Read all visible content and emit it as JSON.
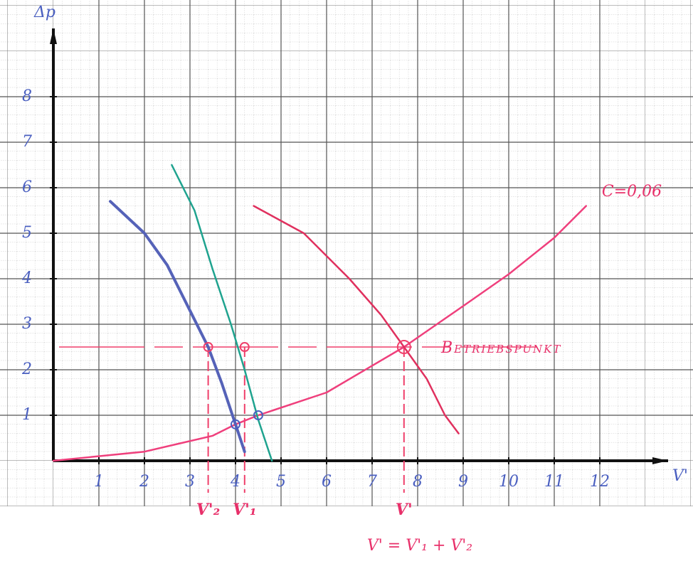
{
  "chart_data": {
    "type": "line",
    "x_label": "V'",
    "y_label": "Δp",
    "xlim": [
      0,
      13.5
    ],
    "ylim": [
      0,
      9.5
    ],
    "xticks": [
      1,
      2,
      3,
      4,
      5,
      6,
      7,
      8,
      9,
      10,
      11,
      12
    ],
    "yticks": [
      1,
      2,
      3,
      4,
      5,
      6,
      7,
      8
    ],
    "grid": true,
    "series": [
      {
        "name": "C=0,06",
        "color": "#ef3f7c",
        "x": [
          0,
          2,
          3.5,
          4,
          4.5,
          6,
          7.7,
          9,
          10,
          11,
          11.7
        ],
        "values": [
          0,
          0.2,
          0.55,
          0.8,
          1.0,
          1.5,
          2.5,
          3.4,
          4.1,
          4.9,
          5.6
        ]
      },
      {
        "color": "#5562b8",
        "x": [
          1.25,
          2,
          2.5,
          3,
          3.4,
          3.7,
          4,
          4.2
        ],
        "values": [
          5.7,
          5.0,
          4.3,
          3.3,
          2.5,
          1.7,
          0.8,
          0.2
        ]
      },
      {
        "color": "#1fa38f",
        "x": [
          2.6,
          3.1,
          3.5,
          3.9,
          4.2,
          4.5,
          4.8
        ],
        "values": [
          6.5,
          5.5,
          4.2,
          3.0,
          2.0,
          0.9,
          0
        ]
      },
      {
        "color": "#e0305e",
        "x": [
          4.4,
          5.5,
          6.5,
          7.2,
          7.7,
          8.2,
          8.6,
          8.9
        ],
        "values": [
          5.6,
          5.0,
          4.0,
          3.2,
          2.5,
          1.8,
          1.0,
          0.6
        ]
      }
    ],
    "hline": {
      "value": 2.5,
      "label": "Betriebspunkt",
      "color": "#ef3f6a"
    },
    "vlines": [
      {
        "value": 3.4,
        "label": "V'₂"
      },
      {
        "value": 4.2,
        "label": "V'₁"
      },
      {
        "value": 7.7,
        "label": "V'"
      }
    ],
    "points": {
      "x": [
        4.0,
        4.5,
        7.7,
        3.4,
        4.2
      ],
      "y": [
        0.8,
        1.0,
        2.5,
        2.5,
        2.5
      ]
    },
    "formula": "V' = V'₁ + V'₂"
  }
}
